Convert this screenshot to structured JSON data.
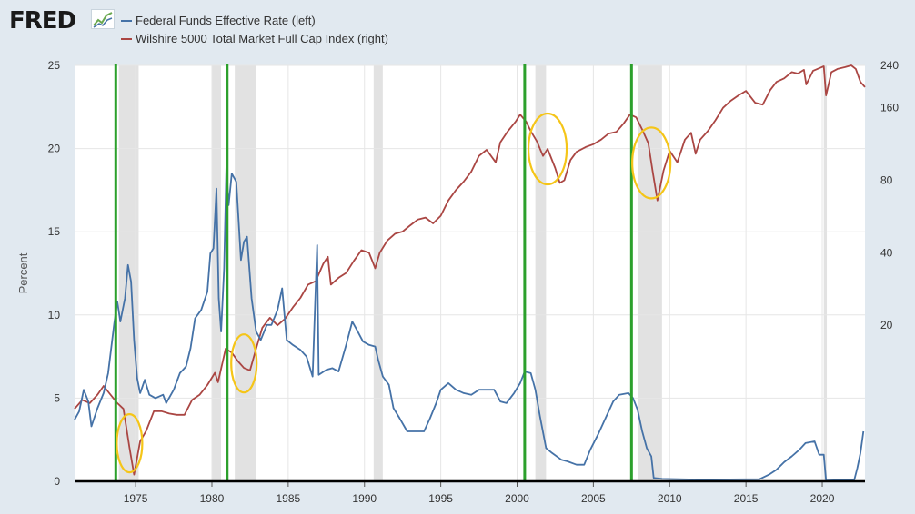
{
  "brand": {
    "logo_text": "FRED",
    "icon": "fred-chart-icon"
  },
  "legend": [
    {
      "label": "Federal Funds Effective Rate (left)",
      "color": "#4572a7"
    },
    {
      "label": "Wilshire 5000 Total Market Full Cap Index (right)",
      "color": "#aa4643"
    }
  ],
  "chart_data": {
    "type": "line",
    "title": "",
    "ylabel": "Percent",
    "xlim": [
      1971,
      2022.8
    ],
    "ylim_left": [
      0,
      25
    ],
    "ylim_right_log": [
      4.5,
      240
    ],
    "x_ticks": [
      1975,
      1980,
      1985,
      1990,
      1995,
      2000,
      2005,
      2010,
      2015,
      2020
    ],
    "y_ticks_left": [
      0,
      5,
      10,
      15,
      20,
      25
    ],
    "y_ticks_right": [
      20,
      40,
      80,
      160,
      240
    ],
    "series": [
      {
        "name": "Federal Funds Effective Rate (left)",
        "color": "#4572a7",
        "points": [
          [
            1971.0,
            3.7
          ],
          [
            1971.3,
            4.2
          ],
          [
            1971.6,
            5.5
          ],
          [
            1971.9,
            4.8
          ],
          [
            1972.1,
            3.3
          ],
          [
            1972.5,
            4.4
          ],
          [
            1972.9,
            5.3
          ],
          [
            1973.2,
            6.5
          ],
          [
            1973.6,
            9.5
          ],
          [
            1973.8,
            10.8
          ],
          [
            1974.0,
            9.6
          ],
          [
            1974.3,
            11.0
          ],
          [
            1974.5,
            13.0
          ],
          [
            1974.7,
            12.0
          ],
          [
            1974.9,
            8.5
          ],
          [
            1975.1,
            6.2
          ],
          [
            1975.3,
            5.3
          ],
          [
            1975.6,
            6.1
          ],
          [
            1975.9,
            5.2
          ],
          [
            1976.3,
            5.0
          ],
          [
            1976.8,
            5.2
          ],
          [
            1977.0,
            4.7
          ],
          [
            1977.5,
            5.5
          ],
          [
            1977.9,
            6.5
          ],
          [
            1978.3,
            6.9
          ],
          [
            1978.6,
            8.0
          ],
          [
            1978.9,
            9.8
          ],
          [
            1979.3,
            10.3
          ],
          [
            1979.7,
            11.4
          ],
          [
            1979.9,
            13.7
          ],
          [
            1980.1,
            14.0
          ],
          [
            1980.3,
            17.6
          ],
          [
            1980.45,
            11.0
          ],
          [
            1980.6,
            9.0
          ],
          [
            1980.8,
            12.8
          ],
          [
            1980.95,
            18.9
          ],
          [
            1981.1,
            16.6
          ],
          [
            1981.3,
            18.5
          ],
          [
            1981.6,
            18.0
          ],
          [
            1981.9,
            13.3
          ],
          [
            1982.1,
            14.4
          ],
          [
            1982.3,
            14.7
          ],
          [
            1982.6,
            11.0
          ],
          [
            1982.9,
            9.0
          ],
          [
            1983.2,
            8.5
          ],
          [
            1983.6,
            9.4
          ],
          [
            1983.9,
            9.4
          ],
          [
            1984.3,
            10.3
          ],
          [
            1984.6,
            11.6
          ],
          [
            1984.9,
            8.5
          ],
          [
            1985.3,
            8.2
          ],
          [
            1985.8,
            7.9
          ],
          [
            1986.2,
            7.5
          ],
          [
            1986.6,
            6.3
          ],
          [
            1986.9,
            14.2
          ],
          [
            1987.0,
            6.4
          ],
          [
            1987.5,
            6.7
          ],
          [
            1987.9,
            6.8
          ],
          [
            1988.3,
            6.6
          ],
          [
            1988.8,
            8.2
          ],
          [
            1989.2,
            9.6
          ],
          [
            1989.5,
            9.1
          ],
          [
            1989.9,
            8.4
          ],
          [
            1990.3,
            8.2
          ],
          [
            1990.7,
            8.1
          ],
          [
            1990.9,
            7.3
          ],
          [
            1991.2,
            6.3
          ],
          [
            1991.6,
            5.8
          ],
          [
            1991.9,
            4.4
          ],
          [
            1992.3,
            3.8
          ],
          [
            1992.8,
            3.0
          ],
          [
            1993.3,
            3.0
          ],
          [
            1993.9,
            3.0
          ],
          [
            1994.3,
            3.8
          ],
          [
            1994.7,
            4.7
          ],
          [
            1995.0,
            5.5
          ],
          [
            1995.5,
            5.9
          ],
          [
            1996.0,
            5.5
          ],
          [
            1996.5,
            5.3
          ],
          [
            1997.0,
            5.2
          ],
          [
            1997.5,
            5.5
          ],
          [
            1998.0,
            5.5
          ],
          [
            1998.5,
            5.5
          ],
          [
            1998.9,
            4.8
          ],
          [
            1999.3,
            4.7
          ],
          [
            1999.8,
            5.3
          ],
          [
            2000.2,
            5.9
          ],
          [
            2000.5,
            6.6
          ],
          [
            2000.9,
            6.5
          ],
          [
            2001.2,
            5.5
          ],
          [
            2001.5,
            3.9
          ],
          [
            2001.9,
            2.0
          ],
          [
            2002.3,
            1.7
          ],
          [
            2002.9,
            1.3
          ],
          [
            2003.3,
            1.2
          ],
          [
            2003.9,
            1.0
          ],
          [
            2004.4,
            1.0
          ],
          [
            2004.8,
            1.9
          ],
          [
            2005.3,
            2.8
          ],
          [
            2005.8,
            3.8
          ],
          [
            2006.3,
            4.8
          ],
          [
            2006.7,
            5.2
          ],
          [
            2007.3,
            5.3
          ],
          [
            2007.6,
            5.0
          ],
          [
            2007.9,
            4.3
          ],
          [
            2008.2,
            3.0
          ],
          [
            2008.5,
            2.0
          ],
          [
            2008.8,
            1.5
          ],
          [
            2008.95,
            0.2
          ],
          [
            2009.5,
            0.15
          ],
          [
            2012.0,
            0.1
          ],
          [
            2015.9,
            0.13
          ],
          [
            2016.5,
            0.4
          ],
          [
            2017.0,
            0.7
          ],
          [
            2017.5,
            1.15
          ],
          [
            2018.0,
            1.5
          ],
          [
            2018.5,
            1.9
          ],
          [
            2018.9,
            2.3
          ],
          [
            2019.5,
            2.4
          ],
          [
            2019.8,
            1.6
          ],
          [
            2020.1,
            1.6
          ],
          [
            2020.25,
            0.05
          ],
          [
            2021.5,
            0.08
          ],
          [
            2022.1,
            0.1
          ],
          [
            2022.3,
            0.8
          ],
          [
            2022.5,
            1.7
          ],
          [
            2022.7,
            3.0
          ]
        ]
      },
      {
        "name": "Wilshire 5000 Total Market Full Cap Index (right)",
        "color": "#aa4643",
        "points": [
          [
            1971.0,
            9.0
          ],
          [
            1971.5,
            9.8
          ],
          [
            1972.0,
            9.5
          ],
          [
            1972.5,
            10.3
          ],
          [
            1972.9,
            11.2
          ],
          [
            1973.3,
            10.4
          ],
          [
            1973.8,
            9.5
          ],
          [
            1974.2,
            9.0
          ],
          [
            1974.6,
            6.2
          ],
          [
            1974.9,
            4.8
          ],
          [
            1975.3,
            6.6
          ],
          [
            1975.7,
            7.3
          ],
          [
            1976.2,
            8.8
          ],
          [
            1976.7,
            8.8
          ],
          [
            1977.2,
            8.6
          ],
          [
            1977.7,
            8.5
          ],
          [
            1978.2,
            8.5
          ],
          [
            1978.7,
            9.8
          ],
          [
            1979.2,
            10.3
          ],
          [
            1979.7,
            11.3
          ],
          [
            1980.2,
            12.7
          ],
          [
            1980.4,
            11.6
          ],
          [
            1980.9,
            16.0
          ],
          [
            1981.3,
            15.4
          ],
          [
            1981.7,
            14.2
          ],
          [
            1982.1,
            13.3
          ],
          [
            1982.5,
            13.0
          ],
          [
            1982.9,
            16.0
          ],
          [
            1983.3,
            19.5
          ],
          [
            1983.8,
            21.5
          ],
          [
            1984.3,
            20.0
          ],
          [
            1984.8,
            21.3
          ],
          [
            1985.3,
            23.7
          ],
          [
            1985.8,
            26.0
          ],
          [
            1986.3,
            29.5
          ],
          [
            1986.8,
            30.5
          ],
          [
            1987.3,
            36.0
          ],
          [
            1987.6,
            38.5
          ],
          [
            1987.8,
            29.5
          ],
          [
            1988.3,
            31.5
          ],
          [
            1988.8,
            33.0
          ],
          [
            1989.3,
            37.0
          ],
          [
            1989.8,
            41.0
          ],
          [
            1990.3,
            40.0
          ],
          [
            1990.7,
            34.5
          ],
          [
            1991.0,
            40.0
          ],
          [
            1991.5,
            45.0
          ],
          [
            1992.0,
            48.0
          ],
          [
            1992.5,
            49.0
          ],
          [
            1993.0,
            52.0
          ],
          [
            1993.5,
            55.0
          ],
          [
            1994.0,
            56.0
          ],
          [
            1994.5,
            53.0
          ],
          [
            1995.0,
            57.0
          ],
          [
            1995.5,
            66.0
          ],
          [
            1996.0,
            73.0
          ],
          [
            1996.5,
            79.0
          ],
          [
            1997.0,
            87.0
          ],
          [
            1997.5,
            101.0
          ],
          [
            1998.0,
            107.0
          ],
          [
            1998.6,
            95.0
          ],
          [
            1998.9,
            115.0
          ],
          [
            1999.4,
            128.0
          ],
          [
            1999.9,
            140.0
          ],
          [
            2000.2,
            150.0
          ],
          [
            2000.6,
            140.0
          ],
          [
            2000.9,
            128.0
          ],
          [
            2001.3,
            116.0
          ],
          [
            2001.7,
            101.0
          ],
          [
            2002.0,
            108.0
          ],
          [
            2002.5,
            90.0
          ],
          [
            2002.8,
            78.0
          ],
          [
            2003.1,
            80.0
          ],
          [
            2003.5,
            97.0
          ],
          [
            2003.9,
            105.0
          ],
          [
            2004.5,
            110.0
          ],
          [
            2005.0,
            113.0
          ],
          [
            2005.5,
            118.0
          ],
          [
            2006.0,
            125.0
          ],
          [
            2006.5,
            127.0
          ],
          [
            2007.0,
            138.0
          ],
          [
            2007.4,
            150.0
          ],
          [
            2007.8,
            146.0
          ],
          [
            2008.2,
            130.0
          ],
          [
            2008.6,
            114.0
          ],
          [
            2008.9,
            86.0
          ],
          [
            2009.2,
            66.0
          ],
          [
            2009.6,
            88.0
          ],
          [
            2010.0,
            106.0
          ],
          [
            2010.5,
            95.0
          ],
          [
            2011.0,
            118.0
          ],
          [
            2011.4,
            126.0
          ],
          [
            2011.7,
            103.0
          ],
          [
            2012.0,
            118.0
          ],
          [
            2012.5,
            128.0
          ],
          [
            2013.0,
            142.0
          ],
          [
            2013.5,
            160.0
          ],
          [
            2014.0,
            171.0
          ],
          [
            2014.5,
            180.0
          ],
          [
            2015.0,
            188.0
          ],
          [
            2015.6,
            168.0
          ],
          [
            2016.1,
            165.0
          ],
          [
            2016.6,
            190.0
          ],
          [
            2017.0,
            205.0
          ],
          [
            2017.5,
            212.0
          ],
          [
            2018.0,
            225.0
          ],
          [
            2018.4,
            222.0
          ],
          [
            2018.8,
            230.0
          ],
          [
            2018.95,
            200.0
          ],
          [
            2019.4,
            228.0
          ],
          [
            2019.9,
            235.0
          ],
          [
            2020.1,
            238.0
          ],
          [
            2020.25,
            180.0
          ],
          [
            2020.6,
            225.0
          ],
          [
            2021.0,
            232.0
          ],
          [
            2021.5,
            236.0
          ],
          [
            2021.9,
            240.0
          ],
          [
            2022.2,
            232.0
          ],
          [
            2022.5,
            205.0
          ],
          [
            2022.8,
            195.0
          ]
        ]
      }
    ],
    "recessions": [
      [
        1973.9,
        1975.2
      ],
      [
        1980.0,
        1980.6
      ],
      [
        1981.5,
        1982.9
      ],
      [
        1990.6,
        1991.2
      ],
      [
        2001.2,
        2001.9
      ],
      [
        2007.9,
        2009.5
      ],
      [
        2020.1,
        2020.3
      ]
    ],
    "green_markers": [
      1973.7,
      1981.0,
      2000.5,
      2007.5
    ],
    "highlight_circles": [
      1974.6,
      1982.1,
      2002.0,
      2008.8
    ]
  }
}
